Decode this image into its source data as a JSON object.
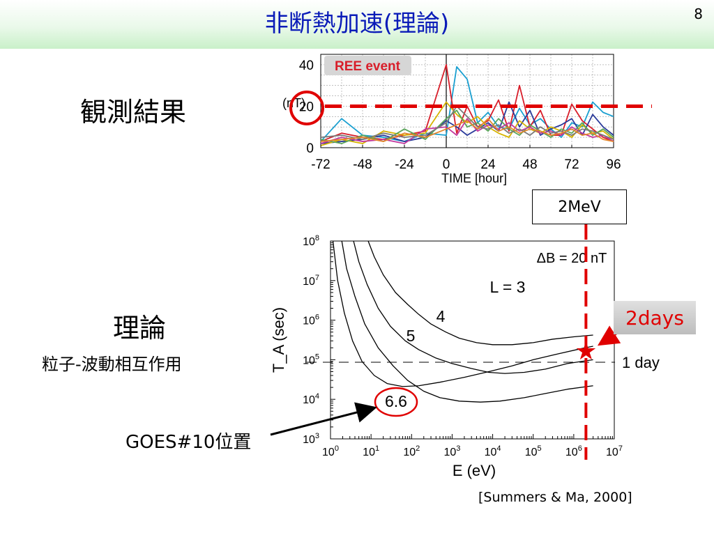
{
  "slide": {
    "title": "非断熱加速(理論)",
    "page_number": "8",
    "observation_label": "観測結果",
    "theory_label": "理論",
    "theory_sublabel": "粒子-波動相互作用",
    "goes_label": "GOES#10位置",
    "citation": "[Summers & Ma, 2000]",
    "energy_box": "2MeV",
    "days_box": "2days",
    "colors": {
      "title": "#0a1bb8",
      "highlight": "#e00000",
      "header_band": "#c9f0c9"
    }
  },
  "chart_data": [
    {
      "type": "line",
      "panel": "observation",
      "badge": "REE event",
      "ylabel": "(nT)",
      "xlabel": "TIME [hour]",
      "xlim": [
        -72,
        96
      ],
      "ylim": [
        0,
        45
      ],
      "x_ticks": [
        "-72",
        "-48",
        "-24",
        "0",
        "24",
        "48",
        "72",
        "96"
      ],
      "y_ticks": [
        "0",
        "20",
        "40"
      ],
      "reference_line": 20,
      "grid": true,
      "series": [
        {
          "color": "#1a9fd0",
          "x": [
            -72,
            -60,
            -48,
            -36,
            -24,
            -12,
            0,
            6,
            12,
            18,
            24,
            30,
            36,
            42,
            48,
            54,
            60,
            66,
            72,
            78,
            84,
            90,
            96
          ],
          "y": [
            3,
            14,
            6,
            5,
            3,
            7,
            6,
            39,
            33,
            12,
            17,
            10,
            9,
            19,
            11,
            14,
            9,
            5,
            12,
            10,
            22,
            17,
            15
          ]
        },
        {
          "color": "#d81e2a",
          "x": [
            -72,
            -60,
            -48,
            -36,
            -24,
            -12,
            0,
            6,
            12,
            18,
            24,
            30,
            36,
            42,
            48,
            54,
            60,
            66,
            72,
            78,
            84,
            90,
            96
          ],
          "y": [
            3,
            7,
            5,
            4,
            6,
            8,
            40,
            7,
            20,
            10,
            13,
            23,
            8,
            30,
            10,
            18,
            6,
            6,
            21,
            13,
            9,
            5,
            3
          ]
        },
        {
          "color": "#2a3a9a",
          "x": [
            -72,
            -60,
            -48,
            -36,
            -24,
            -12,
            0,
            6,
            12,
            18,
            24,
            30,
            36,
            42,
            48,
            54,
            60,
            66,
            72,
            78,
            84,
            90,
            96
          ],
          "y": [
            2,
            3,
            4,
            6,
            3,
            5,
            13,
            10,
            6,
            9,
            12,
            8,
            22,
            10,
            18,
            6,
            9,
            11,
            14,
            6,
            16,
            10,
            6
          ]
        },
        {
          "color": "#d6b400",
          "x": [
            -72,
            -60,
            -48,
            -36,
            -24,
            -12,
            0,
            6,
            12,
            18,
            24,
            30,
            36,
            42,
            48,
            54,
            60,
            66,
            72,
            78,
            84,
            90,
            96
          ],
          "y": [
            1,
            4,
            2,
            8,
            6,
            7,
            22,
            16,
            12,
            15,
            10,
            7,
            5,
            13,
            9,
            7,
            10,
            8,
            5,
            11,
            7,
            8,
            4
          ]
        },
        {
          "color": "#5aa55a",
          "x": [
            -72,
            -60,
            -48,
            -36,
            -24,
            -12,
            0,
            6,
            12,
            18,
            24,
            30,
            36,
            42,
            48,
            54,
            60,
            66,
            72,
            78,
            84,
            90,
            96
          ],
          "y": [
            4,
            2,
            6,
            3,
            9,
            4,
            14,
            18,
            10,
            12,
            8,
            14,
            9,
            6,
            11,
            8,
            5,
            9,
            7,
            12,
            6,
            9,
            5
          ]
        },
        {
          "color": "#c2389e",
          "x": [
            -72,
            -60,
            -48,
            -36,
            -24,
            -12,
            0,
            6,
            12,
            18,
            24,
            30,
            36,
            42,
            48,
            54,
            60,
            66,
            72,
            78,
            84,
            90,
            96
          ],
          "y": [
            2,
            5,
            3,
            4,
            2,
            9,
            10,
            6,
            14,
            8,
            11,
            9,
            12,
            8,
            10,
            7,
            8,
            6,
            10,
            7,
            5,
            6,
            3
          ]
        },
        {
          "color": "#7a7a7a",
          "x": [
            -72,
            -60,
            -48,
            -36,
            -24,
            -12,
            0,
            6,
            12,
            18,
            24,
            30,
            36,
            42,
            48,
            54,
            60,
            66,
            72,
            78,
            84,
            90,
            96
          ],
          "y": [
            5,
            6,
            4,
            7,
            5,
            6,
            12,
            20,
            15,
            10,
            9,
            11,
            7,
            9,
            6,
            10,
            7,
            8,
            6,
            9,
            8,
            6,
            4
          ]
        },
        {
          "color": "#e3862b",
          "x": [
            -72,
            -60,
            -48,
            -36,
            -24,
            -12,
            0,
            6,
            12,
            18,
            24,
            30,
            36,
            42,
            48,
            54,
            60,
            66,
            72,
            78,
            84,
            90,
            96
          ],
          "y": [
            3,
            4,
            5,
            3,
            7,
            5,
            9,
            11,
            13,
            9,
            14,
            8,
            10,
            7,
            9,
            8,
            6,
            7,
            9,
            6,
            7,
            4,
            3
          ]
        }
      ]
    },
    {
      "type": "line",
      "panel": "theory",
      "xlabel": "E (eV)",
      "ylabel": "T_A (sec)",
      "x_scale": "log",
      "y_scale": "log",
      "xlim": [
        1,
        10000000
      ],
      "ylim": [
        1000,
        100000000
      ],
      "x_tick_exponents": [
        0,
        1,
        2,
        3,
        4,
        5,
        6,
        7
      ],
      "y_tick_exponents": [
        3,
        4,
        5,
        6,
        7,
        8
      ],
      "annotation": "ΔB = 20 nT",
      "reference_line": {
        "value": 86400,
        "label": "1 day"
      },
      "marker": {
        "label": "★",
        "E": 2000000,
        "T": 172800
      },
      "circled_label": "6.6",
      "series": [
        {
          "name": "L = 3",
          "E": [
            8.5,
            12,
            20,
            40,
            80,
            150,
            300,
            700,
            1500,
            4000,
            10000,
            30000,
            100000,
            300000,
            1000000,
            3000000
          ],
          "T": [
            100000000,
            40000000,
            14000000,
            5000000,
            2500000,
            1400000,
            800000,
            500000,
            350000,
            270000,
            240000,
            240000,
            270000,
            330000,
            380000,
            420000
          ]
        },
        {
          "name": "4",
          "E": [
            3.7,
            5,
            8,
            15,
            30,
            70,
            150,
            400,
            1000,
            3000,
            8000,
            20000,
            60000,
            200000,
            700000,
            3000000
          ],
          "T": [
            100000000,
            30000000,
            8000000,
            2000000,
            700000,
            300000,
            180000,
            110000,
            80000,
            60000,
            48000,
            45000,
            48000,
            58000,
            80000,
            100000
          ]
        },
        {
          "name": "5",
          "E": [
            1.9,
            2.5,
            4,
            7,
            15,
            35,
            80,
            200,
            500,
            1500,
            5000,
            15000,
            60000,
            200000,
            700000,
            3000000
          ],
          "T": [
            100000000,
            20000000,
            4000000,
            800000,
            200000,
            70000,
            30000,
            16000,
            11000,
            9000,
            8500,
            9000,
            11000,
            14000,
            18000,
            22000
          ]
        },
        {
          "name": "6.6",
          "E": [
            1.15,
            1.5,
            2.2,
            3.5,
            6,
            12,
            25,
            60,
            150,
            500,
            2000,
            8000,
            30000,
            100000,
            400000,
            1500000,
            3000000
          ],
          "T": [
            100000000,
            10000000,
            1500000,
            300000,
            90000,
            40000,
            25000,
            21000,
            22000,
            27000,
            36000,
            50000,
            70000,
            100000,
            140000,
            190000,
            220000
          ]
        }
      ]
    }
  ]
}
